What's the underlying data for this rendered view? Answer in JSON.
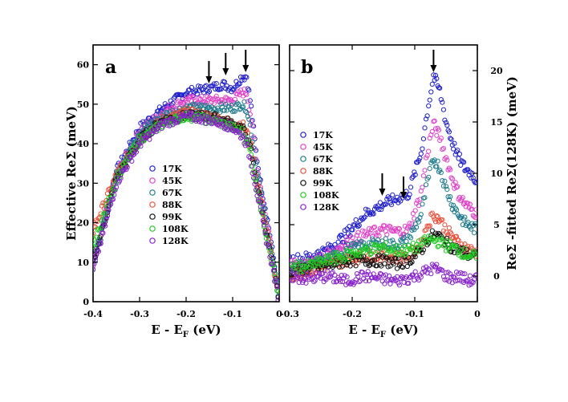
{
  "chart_data": [
    {
      "type": "scatter",
      "panel_label": "a",
      "xlabel": "E - E",
      "xlabel_sub": "F",
      "xlabel_unit": " (eV)",
      "ylabel": "Effective ReΣ (meV)",
      "xlim": [
        -0.4,
        0.0
      ],
      "ylim": [
        0,
        65
      ],
      "xticks": [
        -0.4,
        -0.3,
        -0.2,
        -0.1,
        0.0
      ],
      "xtick_labels": [
        "-0.4",
        "-0.3",
        "-0.2",
        "-0.1",
        "0"
      ],
      "yticks": [
        0,
        10,
        20,
        30,
        40,
        50,
        60
      ],
      "ytick_labels": [
        "0",
        "10",
        "20",
        "30",
        "40",
        "50",
        "60"
      ],
      "arrows_x": [
        -0.151,
        -0.115,
        -0.072
      ],
      "legend": [
        "17K",
        "45K",
        "67K",
        "88K",
        "99K",
        "108K",
        "128K"
      ],
      "series": [
        {
          "name": "17K",
          "color": "#1f1fcc",
          "x": [
            -0.4,
            -0.35,
            -0.3,
            -0.25,
            -0.2,
            -0.15,
            -0.12,
            -0.1,
            -0.08,
            -0.07,
            -0.06,
            -0.05,
            -0.04,
            -0.03,
            -0.02,
            -0.01,
            0.0
          ],
          "y": [
            10,
            33,
            44,
            49,
            53,
            54,
            55,
            54,
            57,
            57,
            49,
            38,
            30,
            24,
            17,
            9,
            0
          ]
        },
        {
          "name": "45K",
          "color": "#e040c8",
          "x": [
            -0.4,
            -0.35,
            -0.3,
            -0.25,
            -0.2,
            -0.15,
            -0.12,
            -0.1,
            -0.08,
            -0.07,
            -0.06,
            -0.05,
            -0.04,
            -0.03,
            -0.02,
            -0.01,
            0.0
          ],
          "y": [
            9,
            32,
            43,
            48,
            51,
            51,
            51,
            51,
            53,
            53,
            46,
            36,
            29,
            22,
            16,
            8,
            0
          ]
        },
        {
          "name": "67K",
          "color": "#1f7a8c",
          "x": [
            -0.4,
            -0.35,
            -0.3,
            -0.25,
            -0.2,
            -0.15,
            -0.12,
            -0.1,
            -0.08,
            -0.07,
            -0.06,
            -0.05,
            -0.04,
            -0.03,
            -0.02,
            -0.01,
            0.0
          ],
          "y": [
            9,
            32,
            43,
            47,
            49,
            49,
            49,
            49,
            50,
            49,
            43,
            35,
            28,
            21,
            15,
            8,
            0
          ]
        },
        {
          "name": "88K",
          "color": "#e8503c",
          "x": [
            -0.4,
            -0.35,
            -0.3,
            -0.25,
            -0.2,
            -0.15,
            -0.12,
            -0.1,
            -0.08,
            -0.07,
            -0.06,
            -0.05,
            -0.04,
            -0.03,
            -0.02,
            -0.01,
            0.0
          ],
          "y": [
            18,
            32,
            41,
            46,
            48,
            47,
            46,
            45,
            45,
            43,
            39,
            32,
            26,
            20,
            14,
            7,
            0
          ]
        },
        {
          "name": "99K",
          "color": "#111111",
          "x": [
            -0.4,
            -0.35,
            -0.3,
            -0.25,
            -0.2,
            -0.15,
            -0.12,
            -0.1,
            -0.08,
            -0.07,
            -0.06,
            -0.05,
            -0.04,
            -0.03,
            -0.02,
            -0.01,
            0.0
          ],
          "y": [
            10,
            31,
            41,
            46,
            47,
            47,
            46,
            45,
            44,
            42,
            38,
            31,
            25,
            19,
            13,
            7,
            0
          ]
        },
        {
          "name": "108K",
          "color": "#22cc22",
          "x": [
            -0.4,
            -0.35,
            -0.3,
            -0.25,
            -0.2,
            -0.15,
            -0.12,
            -0.1,
            -0.08,
            -0.07,
            -0.06,
            -0.05,
            -0.04,
            -0.03,
            -0.02,
            -0.01,
            0.0
          ],
          "y": [
            14,
            31,
            41,
            45,
            47,
            46,
            45,
            44,
            43,
            41,
            37,
            30,
            24,
            18,
            13,
            7,
            0
          ]
        },
        {
          "name": "128K",
          "color": "#8822cc",
          "x": [
            -0.4,
            -0.35,
            -0.3,
            -0.25,
            -0.2,
            -0.15,
            -0.12,
            -0.1,
            -0.08,
            -0.07,
            -0.06,
            -0.05,
            -0.04,
            -0.03,
            -0.02,
            -0.01,
            0.0
          ],
          "y": [
            8,
            30,
            40,
            45,
            47,
            46,
            45,
            44,
            42,
            40,
            35,
            29,
            23,
            17,
            12,
            6,
            0
          ]
        }
      ]
    },
    {
      "type": "scatter",
      "panel_label": "b",
      "xlabel": "E - E",
      "xlabel_sub": "F",
      "xlabel_unit": " (eV)",
      "ylabel": "ReΣ -fitted ReΣ(128K) (meV)",
      "xlim": [
        -0.3,
        0.0
      ],
      "ylim": [
        -2.5,
        22.5
      ],
      "xticks": [
        -0.3,
        -0.2,
        -0.1,
        0.0
      ],
      "xtick_labels": [
        "-0.3",
        "-0.2",
        "-0.1",
        "0"
      ],
      "yticks": [
        0,
        5,
        10,
        15,
        20
      ],
      "ytick_labels": [
        "0",
        "5",
        "10",
        "15",
        "20"
      ],
      "arrows_x": [
        -0.152,
        -0.118,
        -0.07
      ],
      "legend": [
        "17K",
        "45K",
        "67K",
        "88K",
        "99K",
        "108K",
        "128K"
      ],
      "series": [
        {
          "name": "17K",
          "color": "#1f1fcc",
          "x": [
            -0.3,
            -0.27,
            -0.24,
            -0.21,
            -0.18,
            -0.15,
            -0.13,
            -0.11,
            -0.09,
            -0.08,
            -0.07,
            -0.06,
            -0.05,
            -0.04,
            -0.03,
            -0.02,
            -0.01,
            0.0
          ],
          "y": [
            1.5,
            1.8,
            2.5,
            4,
            6,
            7,
            7.5,
            8,
            12,
            16,
            19.5,
            18,
            15,
            13,
            11.5,
            10.5,
            10,
            9.2
          ]
        },
        {
          "name": "45K",
          "color": "#e040c8",
          "x": [
            -0.3,
            -0.27,
            -0.24,
            -0.21,
            -0.18,
            -0.15,
            -0.13,
            -0.11,
            -0.09,
            -0.08,
            -0.07,
            -0.06,
            -0.05,
            -0.04,
            -0.03,
            -0.02,
            -0.01,
            0.0
          ],
          "y": [
            1,
            1.2,
            2,
            3.2,
            4,
            4.5,
            4.3,
            4.5,
            8,
            12,
            14.8,
            13.5,
            11.5,
            9.5,
            8,
            7,
            6.5,
            6
          ]
        },
        {
          "name": "67K",
          "color": "#1f7a8c",
          "x": [
            -0.3,
            -0.27,
            -0.24,
            -0.21,
            -0.18,
            -0.15,
            -0.13,
            -0.11,
            -0.09,
            -0.08,
            -0.07,
            -0.06,
            -0.05,
            -0.04,
            -0.03,
            -0.02,
            -0.01,
            0.0
          ],
          "y": [
            0.5,
            0.8,
            1.5,
            2.5,
            3,
            3.2,
            3,
            3.5,
            6,
            9,
            11.5,
            10.5,
            8.5,
            7,
            6,
            5.2,
            4.8,
            4.5
          ]
        },
        {
          "name": "88K",
          "color": "#e8503c",
          "x": [
            -0.3,
            -0.27,
            -0.24,
            -0.21,
            -0.18,
            -0.15,
            -0.13,
            -0.11,
            -0.09,
            -0.08,
            -0.07,
            -0.06,
            -0.05,
            -0.04,
            -0.03,
            -0.02,
            -0.01,
            0.0
          ],
          "y": [
            0,
            0.5,
            1,
            1.5,
            2,
            2,
            1.8,
            2,
            3,
            5,
            6,
            5.5,
            4.5,
            3.8,
            3.2,
            2.8,
            2.5,
            2.2
          ]
        },
        {
          "name": "99K",
          "color": "#111111",
          "x": [
            -0.3,
            -0.27,
            -0.24,
            -0.21,
            -0.18,
            -0.15,
            -0.13,
            -0.11,
            -0.09,
            -0.08,
            -0.07,
            -0.06,
            -0.05,
            -0.04,
            -0.03,
            -0.02,
            -0.01,
            0.0
          ],
          "y": [
            0.5,
            0.8,
            1,
            1.5,
            1.5,
            1.5,
            1.2,
            1.5,
            2.5,
            3.5,
            4,
            3.8,
            3.2,
            2.8,
            2.5,
            2.2,
            2,
            1.8
          ]
        },
        {
          "name": "108K",
          "color": "#22cc22",
          "x": [
            -0.3,
            -0.27,
            -0.24,
            -0.21,
            -0.18,
            -0.15,
            -0.13,
            -0.11,
            -0.09,
            -0.08,
            -0.07,
            -0.06,
            -0.05,
            -0.04,
            -0.03,
            -0.02,
            -0.01,
            0.0
          ],
          "y": [
            0.8,
            1,
            1.5,
            2,
            2.5,
            2.8,
            2.5,
            2.5,
            3,
            3.5,
            3.5,
            3.3,
            3,
            2.8,
            2.5,
            2.2,
            2,
            1.8
          ]
        },
        {
          "name": "128K",
          "color": "#8822cc",
          "x": [
            -0.3,
            -0.27,
            -0.24,
            -0.21,
            -0.18,
            -0.15,
            -0.13,
            -0.11,
            -0.09,
            -0.08,
            -0.07,
            -0.06,
            -0.05,
            -0.04,
            -0.03,
            -0.02,
            -0.01,
            0.0
          ],
          "y": [
            0,
            -0.3,
            0,
            -0.5,
            0,
            -0.3,
            -0.5,
            -0.2,
            0.2,
            0.5,
            0.8,
            0.5,
            0,
            -0.2,
            0,
            -0.3,
            -0.5,
            -0.2
          ]
        }
      ]
    }
  ]
}
